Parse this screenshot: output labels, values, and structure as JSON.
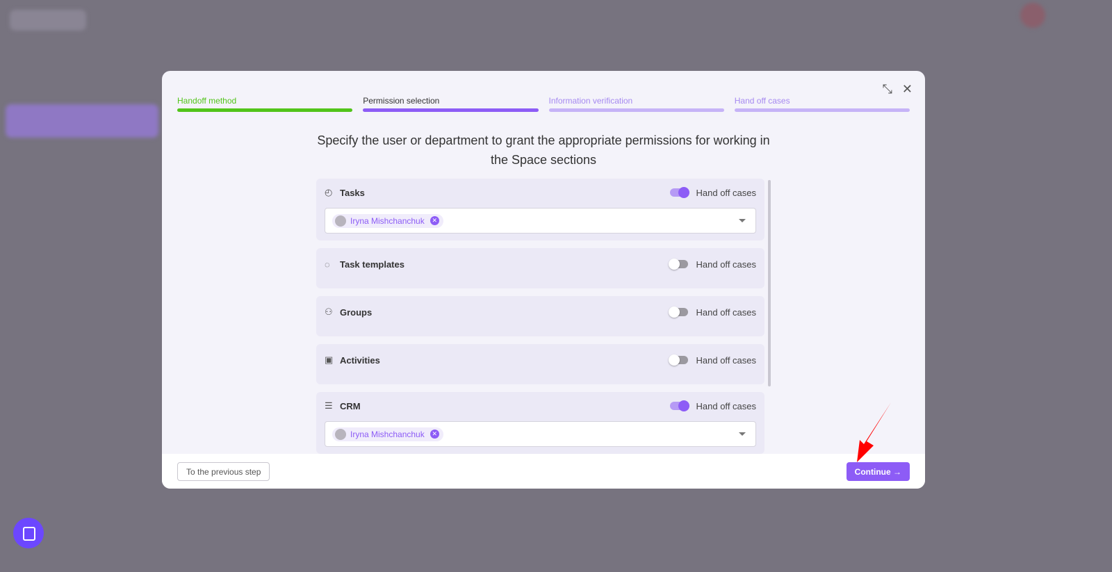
{
  "steps": [
    {
      "label": "Handoff method",
      "color": "#52c41a",
      "bar": "#52c41a",
      "status": "done"
    },
    {
      "label": "Permission selection",
      "color": "#333333",
      "bar": "#8d5cf6",
      "status": "current"
    },
    {
      "label": "Information verification",
      "color": "#a68af0",
      "bar": "#c6b3f7",
      "status": "upcoming"
    },
    {
      "label": "Hand off cases",
      "color": "#a68af0",
      "bar": "#c6b3f7",
      "status": "upcoming"
    }
  ],
  "title": "Specify the user or department to grant the appropriate permissions for working in the Space sections",
  "sections": [
    {
      "name": "Tasks",
      "icon": "check-circle-icon",
      "toggle_label": "Hand off cases",
      "enabled": true,
      "assignee": "Iryna Mishchanchuk"
    },
    {
      "name": "Task templates",
      "icon": "dashed-check-circle-icon",
      "toggle_label": "Hand off cases",
      "enabled": false
    },
    {
      "name": "Groups",
      "icon": "users-icon",
      "toggle_label": "Hand off cases",
      "enabled": false
    },
    {
      "name": "Activities",
      "icon": "calendar-check-icon",
      "toggle_label": "Hand off cases",
      "enabled": false
    },
    {
      "name": "CRM",
      "icon": "database-icon",
      "toggle_label": "Hand off cases",
      "enabled": true,
      "assignee": "Iryna Mishchanchuk"
    }
  ],
  "footer": {
    "prev_label": "To the previous step",
    "continue_label": "Continue →"
  },
  "accent": "#8d5cf6"
}
